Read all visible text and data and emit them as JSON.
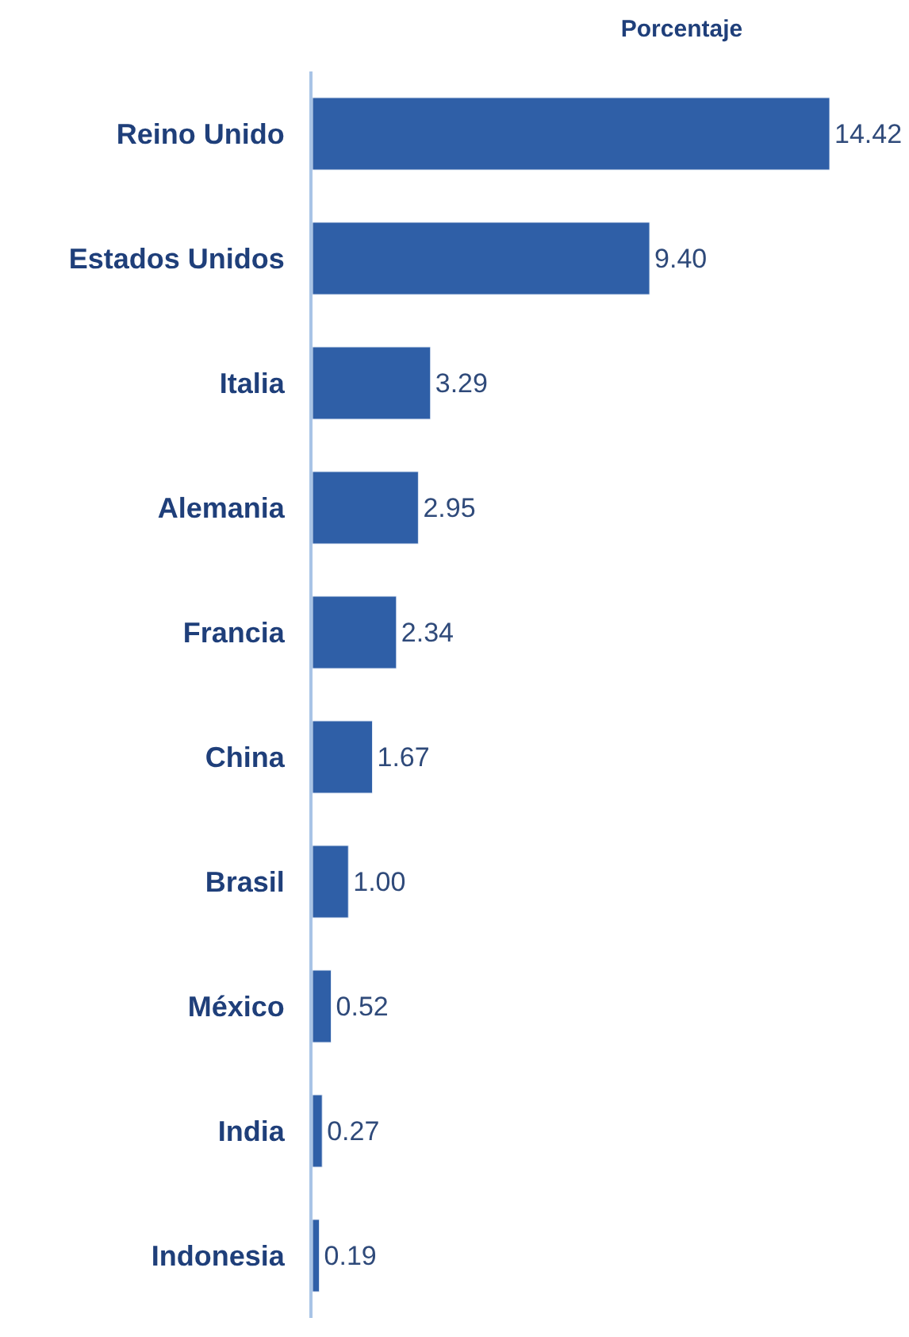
{
  "chart_data": {
    "type": "bar",
    "orientation": "horizontal",
    "title": "Porcentaje",
    "categories": [
      "Reino Unido",
      "Estados Unidos",
      "Italia",
      "Alemania",
      "Francia",
      "China",
      "Brasil",
      "México",
      "India",
      "Indonesia"
    ],
    "values": [
      14.42,
      9.4,
      3.29,
      2.95,
      2.34,
      1.67,
      1.0,
      0.52,
      0.27,
      0.19
    ],
    "value_labels": [
      "14.42",
      "9.40",
      "3.29",
      "2.95",
      "2.34",
      "1.67",
      "1.00",
      "0.52",
      "0.27",
      "0.19"
    ],
    "color": "#2f5fa7",
    "legend": false
  }
}
